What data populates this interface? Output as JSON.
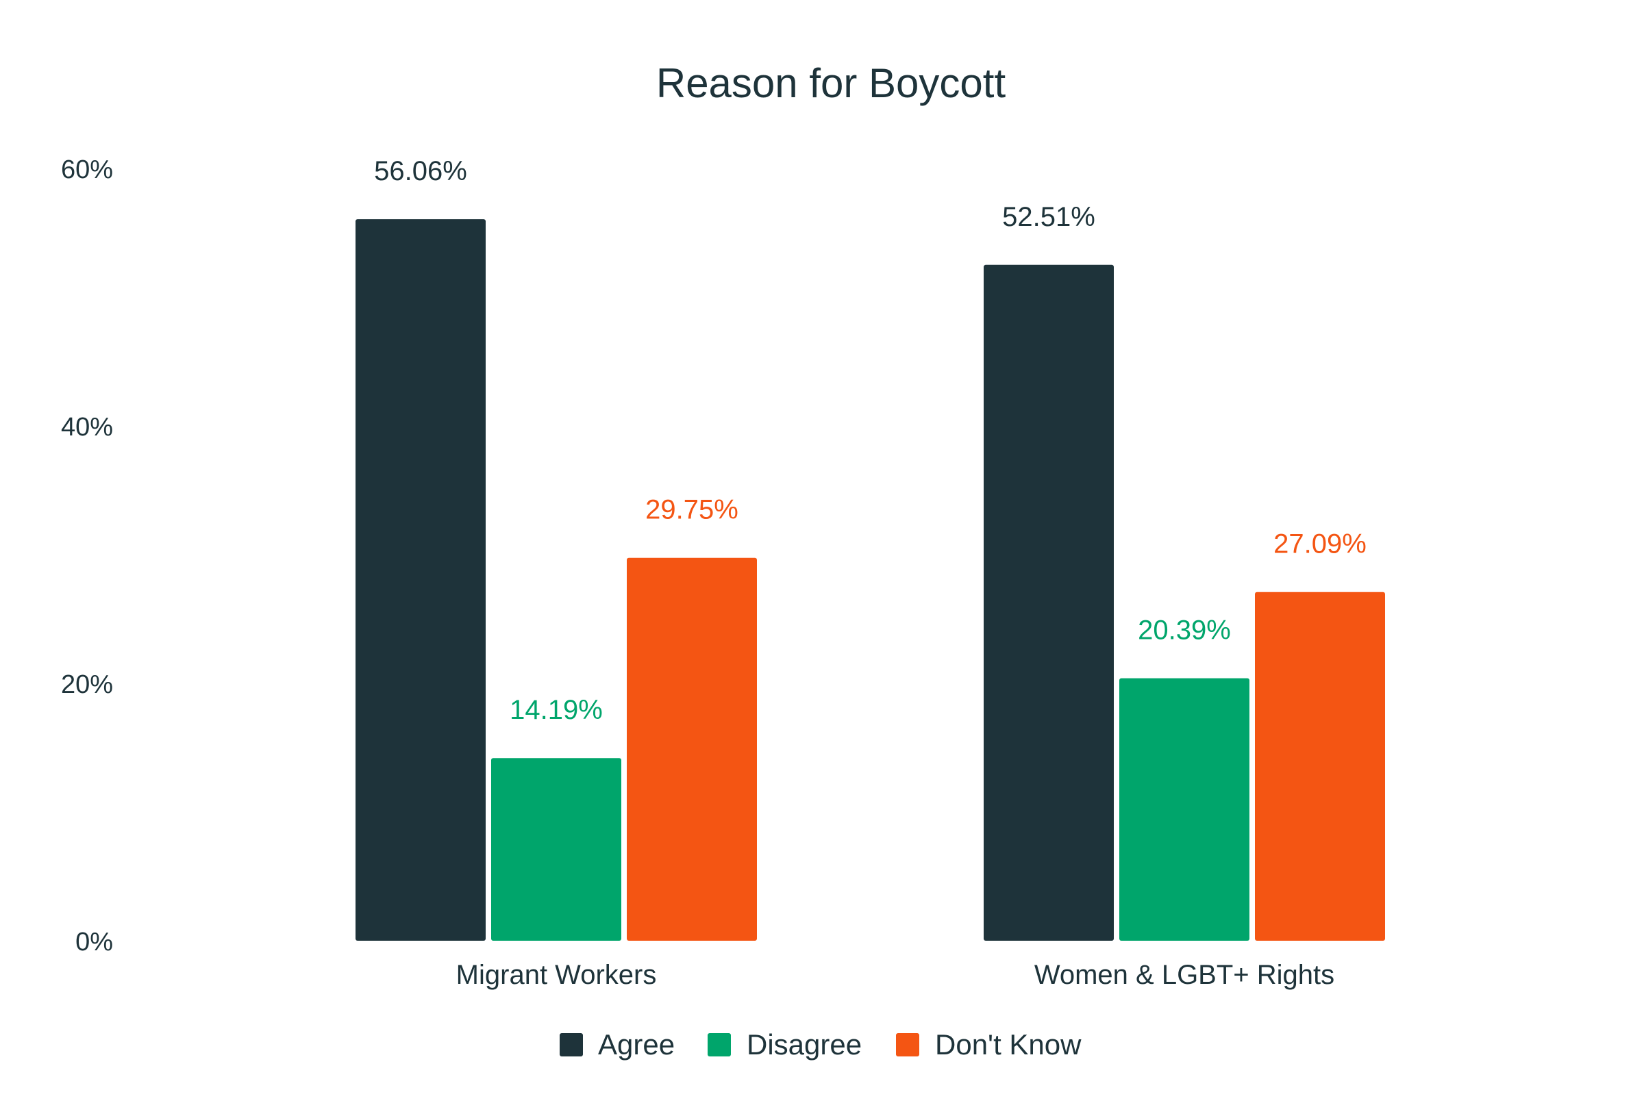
{
  "chart_data": {
    "type": "bar",
    "title": "Reason for Boycott",
    "xlabel": "",
    "ylabel": "",
    "categories": [
      "Migrant Workers",
      "Women & LGBT+ Rights"
    ],
    "series": [
      {
        "name": "Agree",
        "color": "#1e333a",
        "values": [
          56.06,
          52.51
        ],
        "labels": [
          "56.06%",
          "52.51%"
        ]
      },
      {
        "name": "Disagree",
        "color": "#00a56b",
        "values": [
          14.19,
          20.39
        ],
        "labels": [
          "14.19%",
          "20.39%"
        ]
      },
      {
        "name": "Don't Know",
        "color": "#f45513",
        "values": [
          29.75,
          27.09
        ],
        "labels": [
          "29.75%",
          "27.09%"
        ]
      }
    ],
    "ylim": [
      0,
      60
    ],
    "yticks": [
      0,
      20,
      40,
      60
    ],
    "ytick_labels": [
      "0%",
      "20%",
      "40%",
      "60%"
    ],
    "grid": false,
    "legend": "bottom-center",
    "text_color": "#1e333a"
  }
}
